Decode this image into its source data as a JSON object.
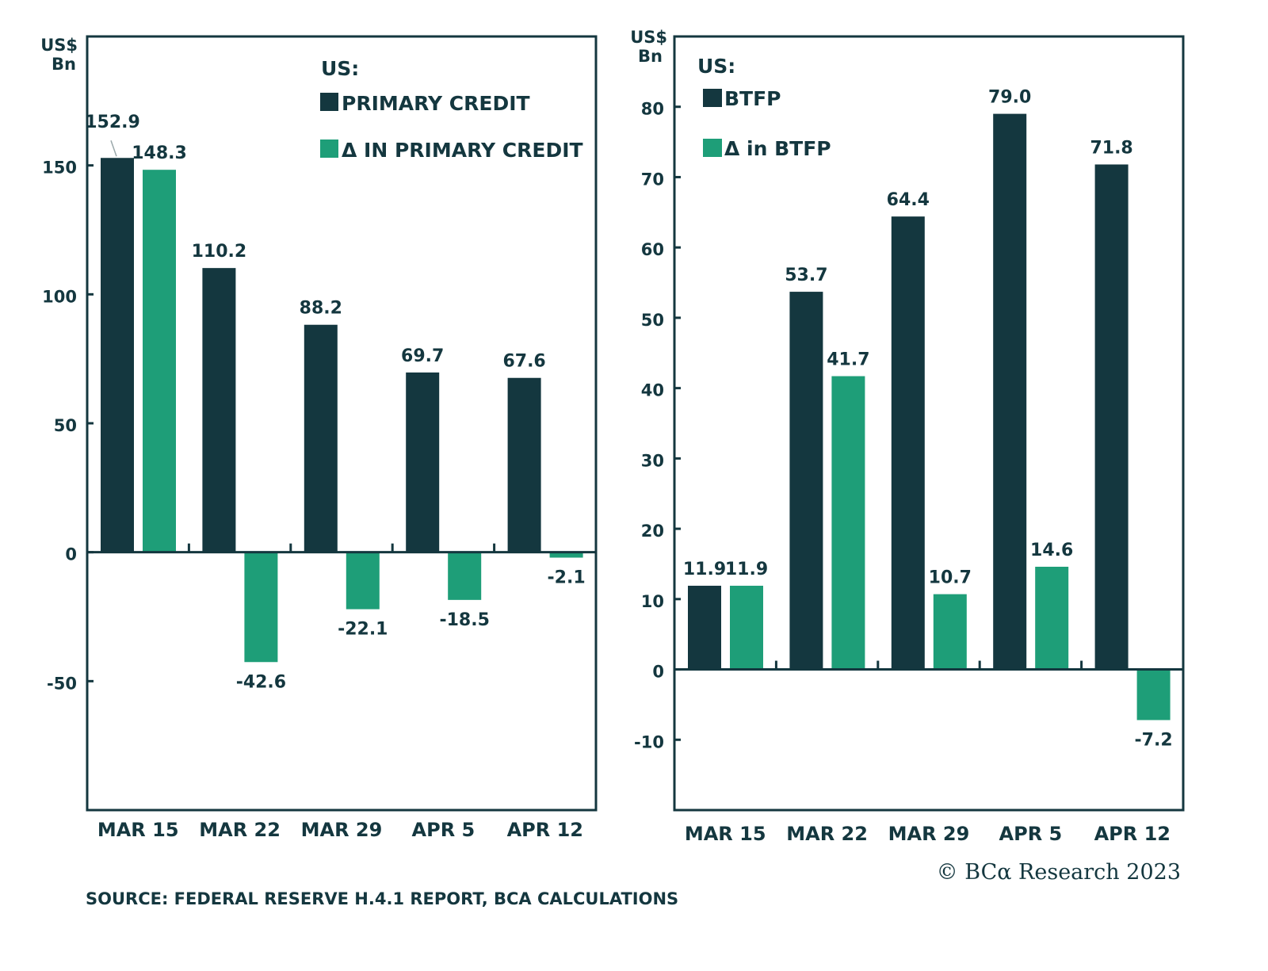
{
  "colors": {
    "primary": "#14373f",
    "delta": "#1e9e78",
    "axis": "#14373f",
    "background": "#ffffff"
  },
  "source": "SOURCE: FEDERAL RESERVE H.4.1 REPORT, BCA CALCULATIONS",
  "copyright": "© BCα Research 2023",
  "chart_data": [
    {
      "type": "bar",
      "title": "",
      "ylabel_line1": "US$",
      "ylabel_line2": "Bn",
      "legend_title": "US:",
      "legend_position": "top-right",
      "categories": [
        "MAR 15",
        "MAR 22",
        "MAR 29",
        "APR 5",
        "APR 12"
      ],
      "series": [
        {
          "name": "PRIMARY CREDIT",
          "color": "#14373f",
          "values": [
            152.9,
            110.2,
            88.2,
            69.7,
            67.6
          ]
        },
        {
          "name": "Δ IN PRIMARY CREDIT",
          "color": "#1e9e78",
          "values": [
            148.3,
            -42.6,
            -22.1,
            -18.5,
            -2.1
          ]
        }
      ],
      "data_labels": [
        [
          "152.9",
          "110.2",
          "88.2",
          "69.7",
          "67.6"
        ],
        [
          "148.3",
          "-42.6",
          "-22.1",
          "-18.5",
          "-2.1"
        ]
      ],
      "yticks": [
        -50,
        0,
        50,
        100,
        150
      ],
      "ytick_labels": [
        "-50",
        "0",
        "50",
        "100",
        "150"
      ],
      "ylim": [
        -100,
        200
      ],
      "grid": false
    },
    {
      "type": "bar",
      "title": "",
      "ylabel_line1": "US$",
      "ylabel_line2": "Bn",
      "legend_title": "US:",
      "legend_position": "top-left",
      "categories": [
        "MAR 15",
        "MAR 22",
        "MAR 29",
        "APR 5",
        "APR 12"
      ],
      "series": [
        {
          "name": "BTFP",
          "color": "#14373f",
          "values": [
            11.9,
            53.7,
            64.4,
            79.0,
            71.8
          ]
        },
        {
          "name": "Δ in BTFP",
          "color": "#1e9e78",
          "values": [
            11.9,
            41.7,
            10.7,
            14.6,
            -7.2
          ]
        }
      ],
      "data_labels": [
        [
          "11.9",
          "53.7",
          "64.4",
          "79.0",
          "71.8"
        ],
        [
          "11.9",
          "41.7",
          "10.7",
          "14.6",
          "-7.2"
        ]
      ],
      "yticks": [
        -10,
        0,
        10,
        20,
        30,
        40,
        50,
        60,
        70,
        80
      ],
      "ytick_labels": [
        "-10",
        "0",
        "10",
        "20",
        "30",
        "40",
        "50",
        "60",
        "70",
        "80"
      ],
      "ylim": [
        -20,
        90
      ],
      "grid": false
    }
  ]
}
